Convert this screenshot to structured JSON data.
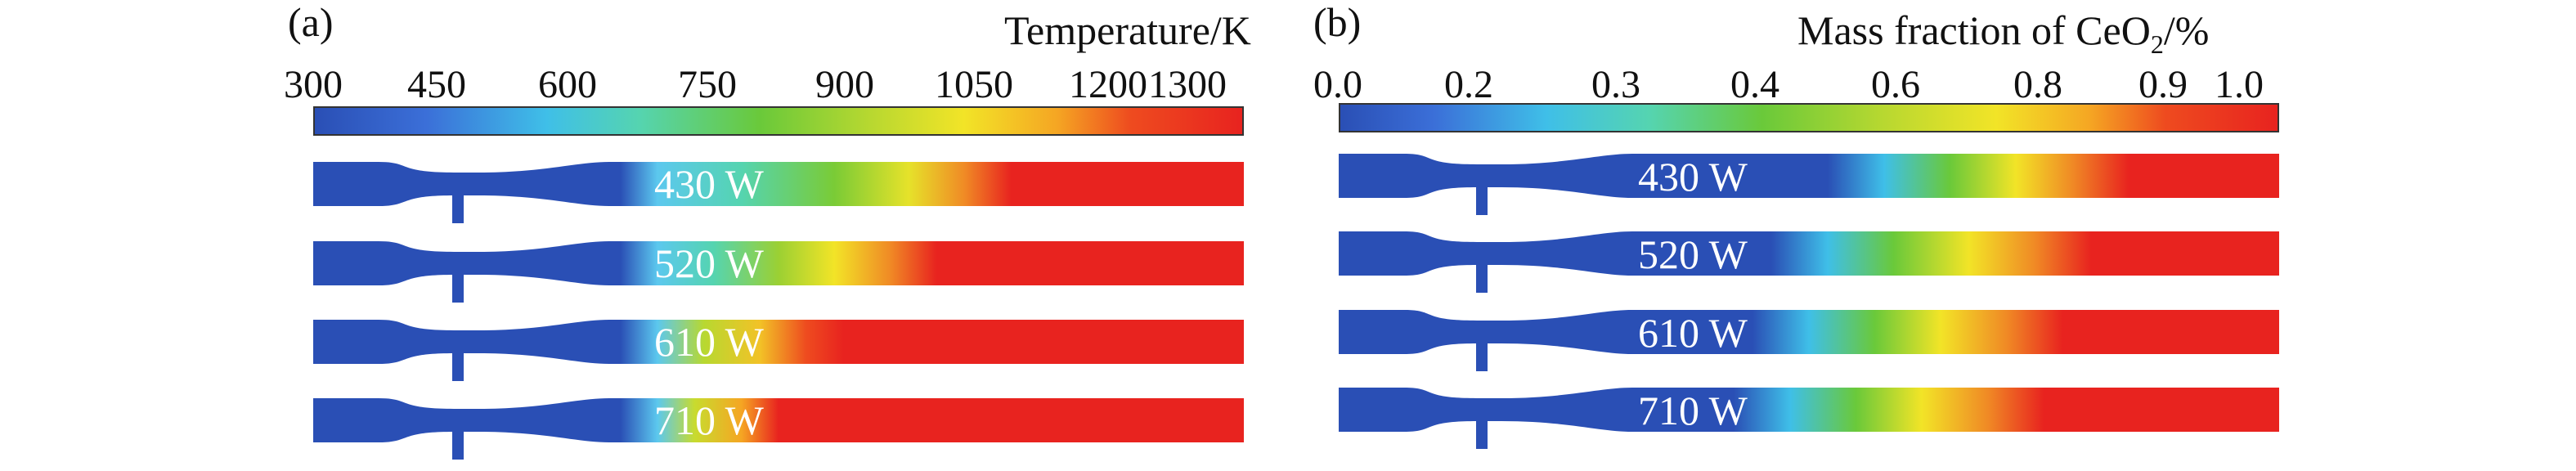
{
  "panel_a": {
    "letter": "(a)",
    "colorbar_title": "Temperature/K",
    "ticks": [
      "300",
      "450",
      "600",
      "750",
      "900",
      "1050",
      "1200",
      "1300"
    ],
    "cases": [
      "430 W",
      "520 W",
      "610 W",
      "710 W"
    ]
  },
  "panel_b": {
    "letter": "(b)",
    "colorbar_title_prefix": "Mass fraction of CeO",
    "colorbar_title_sub": "2",
    "colorbar_title_suffix": "/%",
    "ticks": [
      "0.0",
      "0.2",
      "0.3",
      "0.4",
      "0.6",
      "0.8",
      "0.9",
      "1.0"
    ],
    "cases": [
      "430 W",
      "520 W",
      "610 W",
      "710 W"
    ]
  },
  "colormap": [
    "#2a4fb5",
    "#3b6fd8",
    "#3fbfe8",
    "#55d4b0",
    "#6ac93a",
    "#b8d830",
    "#f2e427",
    "#f5a623",
    "#ee4b1f",
    "#e8231f"
  ]
}
